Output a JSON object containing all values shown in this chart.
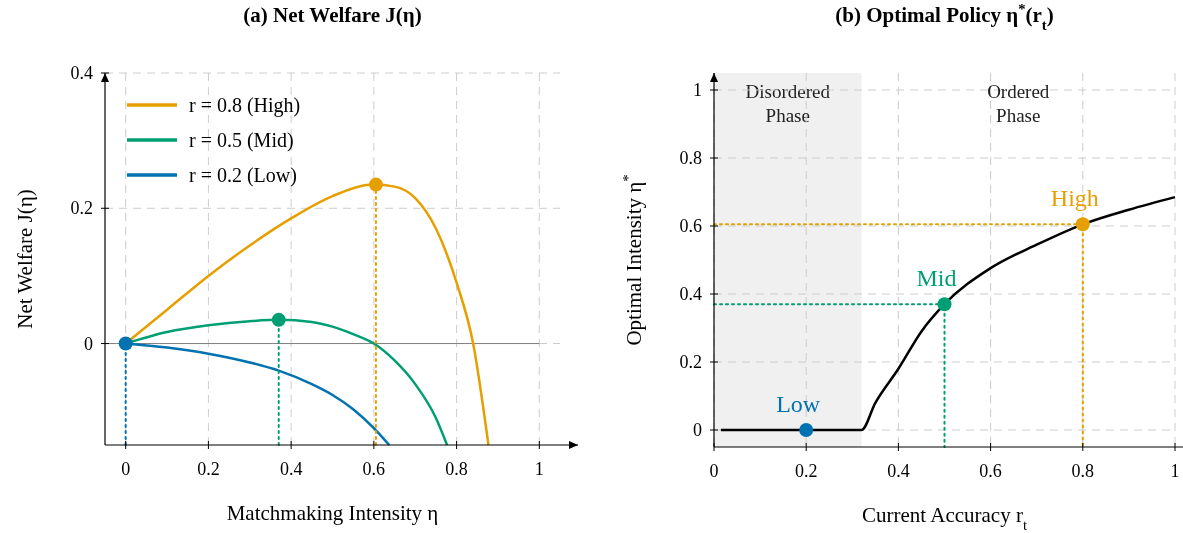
{
  "chart_data": [
    {
      "type": "line",
      "title": "(a) Net Welfare J(η)",
      "xlabel": "Matchmaking Intensity η",
      "ylabel": "Net Welfare J(η)",
      "xlim": [
        -0.05,
        1.05
      ],
      "ylim": [
        -0.15,
        0.4
      ],
      "xticks": [
        0,
        0.2,
        0.4,
        0.6,
        0.8,
        1
      ],
      "yticks": [
        0,
        0.2,
        0.4
      ],
      "grid": true,
      "legend": "top left",
      "line_style": "solid",
      "ref_lines": [
        {
          "axis": "y",
          "value": 0,
          "color": "#808080",
          "line_style": "solid"
        }
      ],
      "series": [
        {
          "name": "r = 0.8 (High)",
          "color": "#e69f00",
          "x": [
            0,
            0.1,
            0.2,
            0.3,
            0.4,
            0.5,
            0.6,
            0.65,
            0.7,
            0.75,
            0.8,
            0.84,
            0.877
          ],
          "values": [
            0,
            0.05,
            0.1,
            0.145,
            0.185,
            0.218,
            0.235,
            0.232,
            0.215,
            0.17,
            0.09,
            0,
            -0.15
          ]
        },
        {
          "name": "r = 0.5 (Mid)",
          "color": "#009e73",
          "x": [
            0,
            0.1,
            0.2,
            0.3,
            0.37,
            0.45,
            0.5,
            0.55,
            0.6,
            0.65,
            0.7,
            0.75,
            0.777
          ],
          "values": [
            0,
            0.017,
            0.027,
            0.033,
            0.035,
            0.032,
            0.025,
            0.014,
            0,
            -0.025,
            -0.06,
            -0.11,
            -0.15
          ]
        },
        {
          "name": "r = 0.2 (Low)",
          "color": "#0072b2",
          "x": [
            0,
            0.1,
            0.2,
            0.3,
            0.37,
            0.45,
            0.5,
            0.55,
            0.6,
            0.637
          ],
          "values": [
            0,
            -0.006,
            -0.015,
            -0.028,
            -0.04,
            -0.06,
            -0.076,
            -0.097,
            -0.125,
            -0.15
          ]
        },
        {
          "type": "line",
          "line_style": "dotted",
          "color": "#e69f00",
          "x": [
            0.605,
            0.605
          ],
          "values": [
            -0.15,
            0.235
          ]
        },
        {
          "type": "line",
          "line_style": "dotted",
          "color": "#009e73",
          "x": [
            0.37,
            0.37
          ],
          "values": [
            -0.15,
            0.035
          ]
        },
        {
          "type": "line",
          "line_style": "dotted",
          "color": "#0072b2",
          "x": [
            0,
            0
          ],
          "values": [
            -0.15,
            0
          ]
        },
        {
          "type": "scatter",
          "marker": "circle",
          "color": "#e69f00",
          "x": [
            0.605
          ],
          "values": [
            0.235
          ]
        },
        {
          "type": "scatter",
          "marker": "circle",
          "color": "#009e73",
          "x": [
            0.37
          ],
          "values": [
            0.035
          ]
        },
        {
          "type": "scatter",
          "marker": "circle",
          "color": "#0072b2",
          "x": [
            0
          ],
          "values": [
            0
          ]
        }
      ]
    },
    {
      "type": "line",
      "title": "(b) Optimal Policy η$^{*}$(r$_{t}$)",
      "xlabel": "Current Accuracy r$_{t}$",
      "ylabel": "Optimal Intensity η$^{*}$",
      "xlim": [
        0,
        1
      ],
      "ylim": [
        -0.05,
        1.05
      ],
      "xticks": [
        0,
        0.2,
        0.4,
        0.6,
        0.8,
        1
      ],
      "yticks": [
        0,
        0.2,
        0.4,
        0.6,
        0.8,
        1
      ],
      "grid": true,
      "line_style": "solid",
      "bands": [
        {
          "axis": "x",
          "from": 0,
          "to": 0.32,
          "label": "Disordered Phase",
          "color": "#f0f0f0"
        }
      ],
      "annotations": [
        "Ordered Phase"
      ],
      "series": [
        {
          "color": "#000000",
          "x": [
            0.015,
            0.1,
            0.2,
            0.32,
            0.35,
            0.4,
            0.45,
            0.5,
            0.6,
            0.7,
            0.8,
            0.9,
            1
          ],
          "values": [
            0,
            0,
            0,
            0,
            0.08,
            0.18,
            0.29,
            0.37,
            0.476,
            0.545,
            0.605,
            0.648,
            0.685
          ]
        },
        {
          "type": "line",
          "line_style": "dotted",
          "color": "#e69f00",
          "x": [
            0,
            0.8,
            0.8
          ],
          "values": [
            0.605,
            0.605,
            -0.05
          ]
        },
        {
          "type": "line",
          "line_style": "dotted",
          "color": "#009e73",
          "x": [
            0,
            0.5,
            0.5
          ],
          "values": [
            0.37,
            0.37,
            -0.05
          ]
        },
        {
          "type": "scatter",
          "marker": "circle",
          "name": "High",
          "color": "#e69f00",
          "x": [
            0.8
          ],
          "values": [
            0.605
          ]
        },
        {
          "type": "scatter",
          "marker": "circle",
          "name": "Mid",
          "color": "#009e73",
          "x": [
            0.5
          ],
          "values": [
            0.37
          ]
        },
        {
          "type": "scatter",
          "marker": "circle",
          "name": "Low",
          "color": "#0072b2",
          "x": [
            0.2
          ],
          "values": [
            0
          ]
        }
      ]
    }
  ]
}
